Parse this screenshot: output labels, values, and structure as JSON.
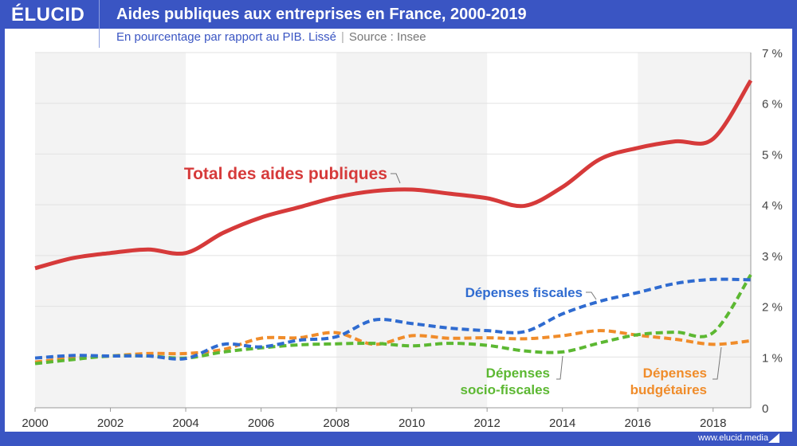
{
  "header": {
    "logo": "ÉLUCID",
    "title": "Aides publiques aux entreprises en France, 2000-2019",
    "subtitle": "En pourcentage par rapport au PIB. Lissé",
    "source": "Source : Insee",
    "footer": "www.elucid.media"
  },
  "chart_data": {
    "type": "line",
    "title": "Aides publiques aux entreprises en France, 2000-2019",
    "x": [
      2000,
      2001,
      2002,
      2003,
      2004,
      2005,
      2006,
      2007,
      2008,
      2009,
      2010,
      2011,
      2012,
      2013,
      2014,
      2015,
      2016,
      2017,
      2018,
      2019
    ],
    "xlim": [
      2000,
      2019
    ],
    "ylim": [
      0,
      7
    ],
    "xticks": [
      "2000",
      "2002",
      "2004",
      "2006",
      "2008",
      "2010",
      "2012",
      "2014",
      "2016",
      "2018"
    ],
    "yticks": [
      "0",
      "1 %",
      "2 %",
      "3 %",
      "4 %",
      "5 %",
      "6 %",
      "7 %"
    ],
    "grid": true,
    "series": [
      {
        "name": "Total des aides publiques",
        "color": "#d63a3a",
        "dashed": false,
        "values": [
          2.75,
          2.95,
          3.05,
          3.12,
          3.05,
          3.45,
          3.75,
          3.95,
          4.15,
          4.27,
          4.3,
          4.22,
          4.13,
          3.98,
          4.35,
          4.9,
          5.12,
          5.25,
          5.3,
          6.45
        ]
      },
      {
        "name": "Dépenses fiscales",
        "color": "#2f6bd0",
        "dashed": true,
        "values": [
          0.98,
          1.03,
          1.02,
          1.02,
          0.97,
          1.25,
          1.2,
          1.33,
          1.4,
          1.73,
          1.66,
          1.57,
          1.52,
          1.5,
          1.85,
          2.1,
          2.27,
          2.45,
          2.53,
          2.52
        ]
      },
      {
        "name": "Dépenses budgétaires",
        "color": "#f08c2a",
        "dashed": true,
        "values": [
          0.9,
          0.98,
          1.02,
          1.07,
          1.07,
          1.15,
          1.37,
          1.38,
          1.48,
          1.25,
          1.42,
          1.37,
          1.38,
          1.36,
          1.42,
          1.52,
          1.43,
          1.35,
          1.25,
          1.32
        ]
      },
      {
        "name": "Dépenses socio-fiscales",
        "color": "#5cb832",
        "dashed": true,
        "values": [
          0.87,
          0.95,
          1.02,
          1.02,
          0.98,
          1.1,
          1.18,
          1.24,
          1.26,
          1.27,
          1.22,
          1.27,
          1.23,
          1.12,
          1.1,
          1.28,
          1.44,
          1.49,
          1.48,
          2.62
        ]
      }
    ],
    "labels": {
      "total": "Total des aides publiques",
      "fiscales": "Dépenses fiscales",
      "socio1": "Dépenses",
      "socio2": "socio-fiscales",
      "budg1": "Dépenses",
      "budg2": "budgétaires"
    }
  }
}
